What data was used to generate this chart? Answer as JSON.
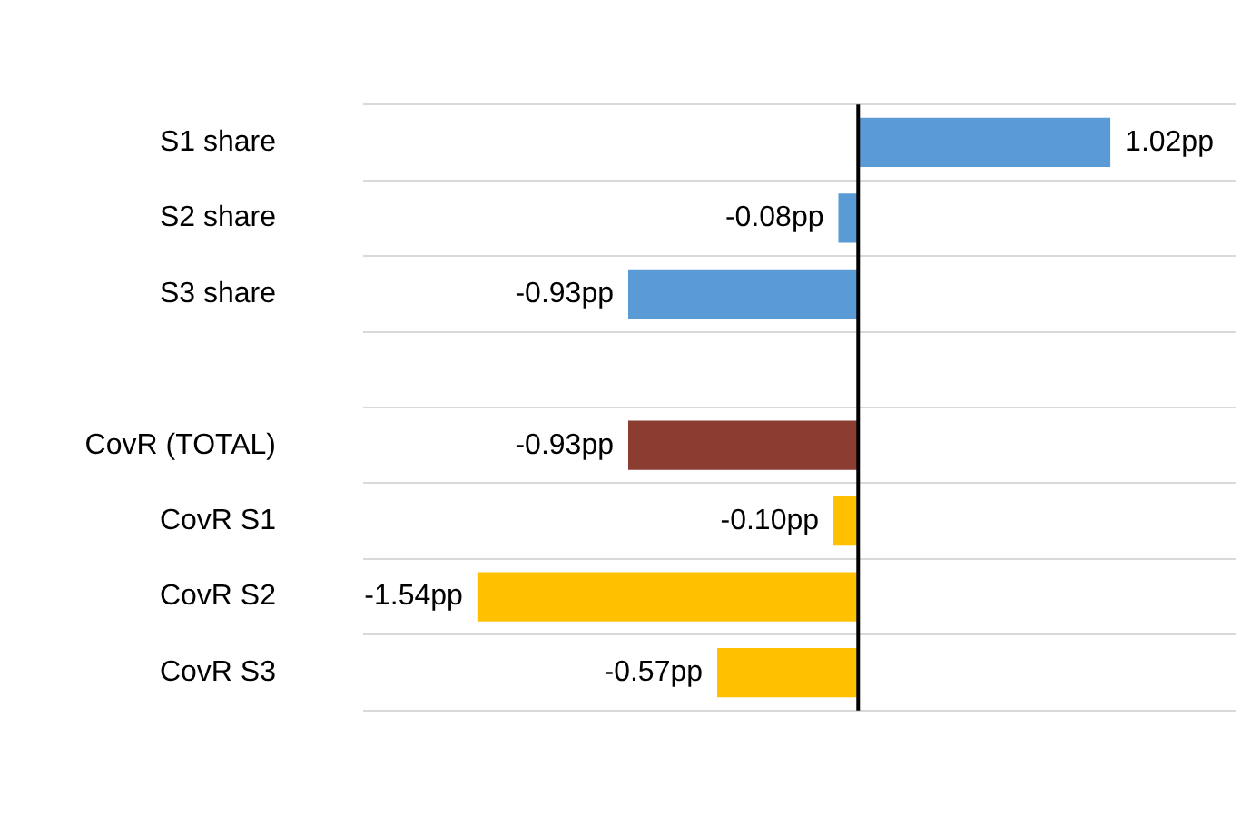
{
  "chart_data": {
    "type": "bar",
    "orientation": "horizontal",
    "categories": [
      "S1 share",
      "S2 share",
      "S3 share",
      null,
      "CovR (TOTAL)",
      "CovR S1",
      "CovR S2",
      "CovR S3"
    ],
    "values": [
      1.02,
      -0.08,
      -0.93,
      null,
      -0.93,
      -0.1,
      -1.54,
      -0.57
    ],
    "colors": [
      "#5b9bd5",
      "#5b9bd5",
      "#5b9bd5",
      "#5b9bd5",
      "#8b3d32",
      "#ffc000",
      "#ffc000",
      "#ffc000"
    ],
    "value_labels": [
      "1.02pp",
      "-0.08pp",
      "-0.93pp",
      null,
      "-0.93pp",
      "-0.10pp",
      "-1.54pp",
      "-0.57pp"
    ],
    "grid": "y",
    "legend": false
  }
}
